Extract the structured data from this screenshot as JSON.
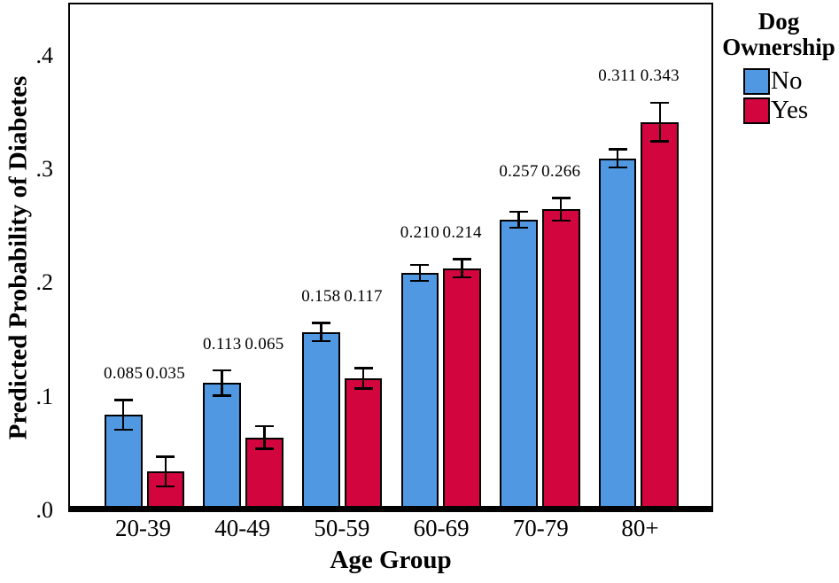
{
  "chart_data": {
    "type": "bar",
    "title": "",
    "xlabel": "Age Group",
    "ylabel": "Predicted Probability of Diabetes",
    "categories": [
      "20-39",
      "40-49",
      "50-59",
      "60-69",
      "70-79",
      "80+"
    ],
    "y_ticks": [
      {
        "label": ".0",
        "value": 0.0
      },
      {
        "label": ".1",
        "value": 0.1
      },
      {
        "label": ".2",
        "value": 0.2
      },
      {
        "label": ".3",
        "value": 0.3
      },
      {
        "label": ".4",
        "value": 0.4
      }
    ],
    "ylim": [
      0,
      0.4
    ],
    "grid": false,
    "legend": {
      "title": "Dog Ownership",
      "position": "top-right"
    },
    "series": [
      {
        "name": "No",
        "color": "#5098E2",
        "values": [
          0.085,
          0.113,
          0.158,
          0.21,
          0.257,
          0.311
        ],
        "ci_half_widths": [
          0.014,
          0.012,
          0.009,
          0.008,
          0.008,
          0.009
        ],
        "value_labels": [
          "0.085",
          "0.113",
          "0.158",
          "0.210",
          "0.257",
          "0.311"
        ]
      },
      {
        "name": "Yes",
        "color": "#D2053E",
        "values": [
          0.035,
          0.065,
          0.117,
          0.214,
          0.266,
          0.343
        ],
        "ci_half_widths": [
          0.014,
          0.011,
          0.01,
          0.009,
          0.011,
          0.018
        ],
        "value_labels": [
          "0.035",
          "0.065",
          "0.117",
          "0.214",
          "0.266",
          "0.343"
        ]
      }
    ],
    "bar_outline_color": "#000000",
    "error_bar_color": "#000000",
    "axis_color": "#000000"
  }
}
